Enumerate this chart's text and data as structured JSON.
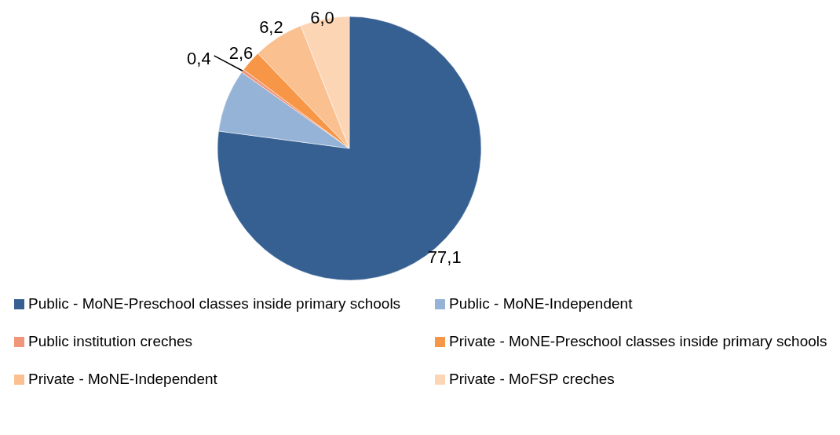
{
  "chart_data": {
    "type": "pie",
    "categories": [
      "Public - MoNE-Preschool classes inside primary schools",
      "Public - MoNE-Independent",
      "Public institution  creches",
      "Private - MoNE-Preschool classes inside primary schools",
      "Private - MoNE-Independent",
      "Private - MoFSP creches"
    ],
    "values": [
      77.1,
      7.7,
      0.4,
      2.6,
      6.2,
      6.0
    ],
    "value_labels": [
      "77,1",
      null,
      "0,4",
      "2,6",
      "6,2",
      "6,0"
    ],
    "colors": [
      "#366092",
      "#95b3d7",
      "#f0967a",
      "#f79646",
      "#fac090",
      "#fcd5b5"
    ],
    "legend": "bottom"
  }
}
